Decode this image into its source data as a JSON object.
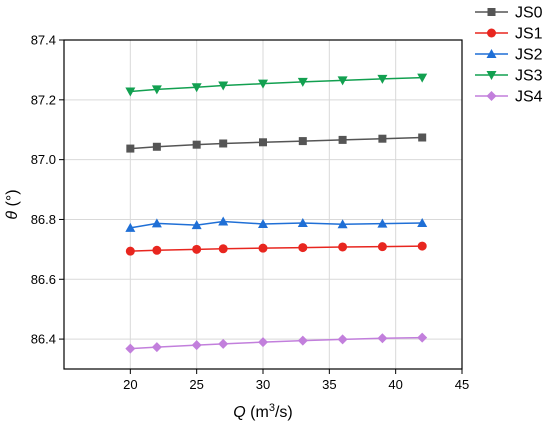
{
  "chart_data": {
    "type": "line",
    "xlabel": "Q (m³/s)",
    "xlabel_parts": {
      "var": "Q",
      "unit_pre": " (m",
      "unit_sup": "3",
      "unit_post": "/s)"
    },
    "ylabel": "θ (°)",
    "ylabel_parts": {
      "var": "θ",
      "unit": " (°)"
    },
    "xlim": [
      15,
      45
    ],
    "ylim": [
      86.3,
      87.4
    ],
    "x_ticks": [
      20,
      25,
      30,
      35,
      40,
      45
    ],
    "x_tick_labels": [
      "20",
      "25",
      "30",
      "35",
      "40",
      "45"
    ],
    "y_ticks": [
      86.4,
      86.6,
      86.8,
      87.0,
      87.2,
      87.4
    ],
    "y_tick_labels": [
      "86.4",
      "86.6",
      "86.8",
      "87.0",
      "87.2",
      "87.4"
    ],
    "grid": true,
    "legend_position": "top-right outside",
    "x": [
      20,
      22,
      25,
      27,
      30,
      33,
      36,
      39,
      42
    ],
    "series": [
      {
        "name": "JS0",
        "color": "#555555",
        "marker": "square",
        "values": [
          87.037,
          87.043,
          87.05,
          87.054,
          87.058,
          87.062,
          87.066,
          87.07,
          87.074
        ]
      },
      {
        "name": "JS1",
        "color": "#e8261f",
        "marker": "circle",
        "values": [
          86.694,
          86.697,
          86.7,
          86.702,
          86.704,
          86.706,
          86.708,
          86.709,
          86.711
        ]
      },
      {
        "name": "JS2",
        "color": "#1f6fd6",
        "marker": "triangle-up",
        "values": [
          86.772,
          86.787,
          86.781,
          86.793,
          86.785,
          86.788,
          86.784,
          86.786,
          86.788
        ]
      },
      {
        "name": "JS3",
        "color": "#12a050",
        "marker": "triangle-down",
        "values": [
          87.228,
          87.235,
          87.242,
          87.248,
          87.254,
          87.26,
          87.265,
          87.27,
          87.274
        ]
      },
      {
        "name": "JS4",
        "color": "#c27fdc",
        "marker": "diamond",
        "values": [
          86.368,
          86.373,
          86.38,
          86.384,
          86.39,
          86.395,
          86.399,
          86.403,
          86.405
        ]
      }
    ]
  }
}
